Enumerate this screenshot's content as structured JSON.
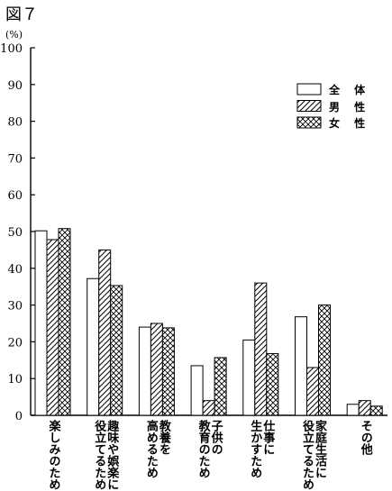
{
  "figure_label": "図７",
  "chart_data": {
    "type": "bar",
    "ylabel": "(%)",
    "ylim": [
      0,
      100
    ],
    "yticks": [
      0,
      10,
      20,
      30,
      40,
      50,
      60,
      70,
      80,
      90,
      100
    ],
    "grid": false,
    "legend_position": "top-right",
    "categories": [
      "楽しみのため",
      "趣味や娯楽に\n役立てるため",
      "教養を\n高めるため",
      "子供の\n教育のため",
      "仕事に\n生かすため",
      "家庭生活に\n役立てるため",
      "その他"
    ],
    "series": [
      {
        "name": "全 体",
        "pattern": "plain",
        "values": [
          50.2,
          37.2,
          24.0,
          13.5,
          20.5,
          26.8,
          3.0
        ]
      },
      {
        "name": "男 性",
        "pattern": "hatch",
        "values": [
          47.8,
          45.0,
          25.0,
          4.0,
          36.0,
          13.0,
          4.0
        ]
      },
      {
        "name": "女 性",
        "pattern": "crosshatch",
        "values": [
          50.8,
          35.3,
          23.8,
          15.7,
          16.8,
          30.0,
          2.5
        ]
      }
    ]
  }
}
